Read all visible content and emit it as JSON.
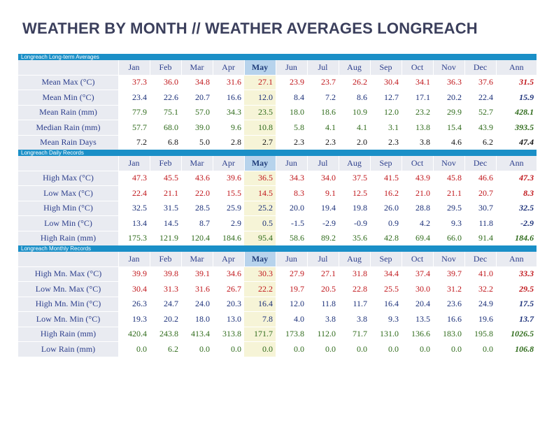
{
  "title": "WEATHER BY MONTH // WEATHER AVERAGES LONGREACH",
  "columns": [
    "Jan",
    "Feb",
    "Mar",
    "Apr",
    "May",
    "Jun",
    "Jul",
    "Aug",
    "Sep",
    "Oct",
    "Nov",
    "Dec",
    "Ann"
  ],
  "highlight_column": "May",
  "colors": {
    "red": "#c0161b",
    "blue": "#1a2f78",
    "green": "#2f6b1b",
    "black": "#111111",
    "section_bar": "#1a8fc7",
    "highlight_header": "#b7d3ec",
    "highlight_cell": "#f6f4d7"
  },
  "sections": [
    {
      "title": "Longreach Long-term Averages",
      "rows": [
        {
          "label": "Mean Max (°C)",
          "color": "red",
          "values": [
            "37.3",
            "36.0",
            "34.8",
            "31.6",
            "27.1",
            "23.9",
            "23.7",
            "26.2",
            "30.4",
            "34.1",
            "36.3",
            "37.6",
            "31.5"
          ]
        },
        {
          "label": "Mean Min (°C)",
          "color": "blue",
          "values": [
            "23.4",
            "22.6",
            "20.7",
            "16.6",
            "12.0",
            "8.4",
            "7.2",
            "8.6",
            "12.7",
            "17.1",
            "20.2",
            "22.4",
            "15.9"
          ]
        },
        {
          "label": "Mean Rain (mm)",
          "color": "green",
          "values": [
            "77.9",
            "75.1",
            "57.0",
            "34.3",
            "23.5",
            "18.0",
            "18.6",
            "10.9",
            "12.0",
            "23.2",
            "29.9",
            "52.7",
            "428.1"
          ]
        },
        {
          "label": "Median Rain (mm)",
          "color": "green",
          "values": [
            "57.7",
            "68.0",
            "39.0",
            "9.6",
            "10.8",
            "5.8",
            "4.1",
            "4.1",
            "3.1",
            "13.8",
            "15.4",
            "43.9",
            "393.5"
          ]
        },
        {
          "label": "Mean Rain Days",
          "color": "black",
          "values": [
            "7.2",
            "6.8",
            "5.0",
            "2.8",
            "2.7",
            "2.3",
            "2.3",
            "2.0",
            "2.3",
            "3.8",
            "4.6",
            "6.2",
            "47.4"
          ]
        }
      ]
    },
    {
      "title": "Longreach Daily Records",
      "rows": [
        {
          "label": "High Max (°C)",
          "color": "red",
          "values": [
            "47.3",
            "45.5",
            "43.6",
            "39.6",
            "36.5",
            "34.3",
            "34.0",
            "37.5",
            "41.5",
            "43.9",
            "45.8",
            "46.6",
            "47.3"
          ]
        },
        {
          "label": "Low Max (°C)",
          "color": "red",
          "values": [
            "22.4",
            "21.1",
            "22.0",
            "15.5",
            "14.5",
            "8.3",
            "9.1",
            "12.5",
            "16.2",
            "21.0",
            "21.1",
            "20.7",
            "8.3"
          ]
        },
        {
          "label": "High Min (°C)",
          "color": "blue",
          "values": [
            "32.5",
            "31.5",
            "28.5",
            "25.9",
            "25.2",
            "20.0",
            "19.4",
            "19.8",
            "26.0",
            "28.8",
            "29.5",
            "30.7",
            "32.5"
          ]
        },
        {
          "label": "Low Min (°C)",
          "color": "blue",
          "values": [
            "13.4",
            "14.5",
            "8.7",
            "2.9",
            "0.5",
            "-1.5",
            "-2.9",
            "-0.9",
            "0.9",
            "4.2",
            "9.3",
            "11.8",
            "-2.9"
          ]
        },
        {
          "label": "High Rain (mm)",
          "color": "green",
          "values": [
            "175.3",
            "121.9",
            "120.4",
            "184.6",
            "95.4",
            "58.6",
            "89.2",
            "35.6",
            "42.8",
            "69.4",
            "66.0",
            "91.4",
            "184.6"
          ]
        }
      ]
    },
    {
      "title": "Longreach Monthly Records",
      "rows": [
        {
          "label": "High Mn. Max (°C)",
          "color": "red",
          "values": [
            "39.9",
            "39.8",
            "39.1",
            "34.6",
            "30.3",
            "27.9",
            "27.1",
            "31.8",
            "34.4",
            "37.4",
            "39.7",
            "41.0",
            "33.3"
          ]
        },
        {
          "label": "Low Mn. Max (°C)",
          "color": "red",
          "values": [
            "30.4",
            "31.3",
            "31.6",
            "26.7",
            "22.2",
            "19.7",
            "20.5",
            "22.8",
            "25.5",
            "30.0",
            "31.2",
            "32.2",
            "29.5"
          ]
        },
        {
          "label": "High Mn. Min (°C)",
          "color": "blue",
          "values": [
            "26.3",
            "24.7",
            "24.0",
            "20.3",
            "16.4",
            "12.0",
            "11.8",
            "11.7",
            "16.4",
            "20.4",
            "23.6",
            "24.9",
            "17.5"
          ]
        },
        {
          "label": "Low Mn. Min (°C)",
          "color": "blue",
          "values": [
            "19.3",
            "20.2",
            "18.0",
            "13.0",
            "7.8",
            "4.0",
            "3.8",
            "3.8",
            "9.3",
            "13.5",
            "16.6",
            "19.6",
            "13.7"
          ]
        },
        {
          "label": "High Rain (mm)",
          "color": "green",
          "values": [
            "420.4",
            "243.8",
            "413.4",
            "313.8",
            "171.7",
            "173.8",
            "112.0",
            "71.7",
            "131.0",
            "136.6",
            "183.0",
            "195.8",
            "1026.5"
          ]
        },
        {
          "label": "Low Rain (mm)",
          "color": "green",
          "values": [
            "0.0",
            "6.2",
            "0.0",
            "0.0",
            "0.0",
            "0.0",
            "0.0",
            "0.0",
            "0.0",
            "0.0",
            "0.0",
            "0.0",
            "106.8"
          ]
        }
      ]
    }
  ]
}
